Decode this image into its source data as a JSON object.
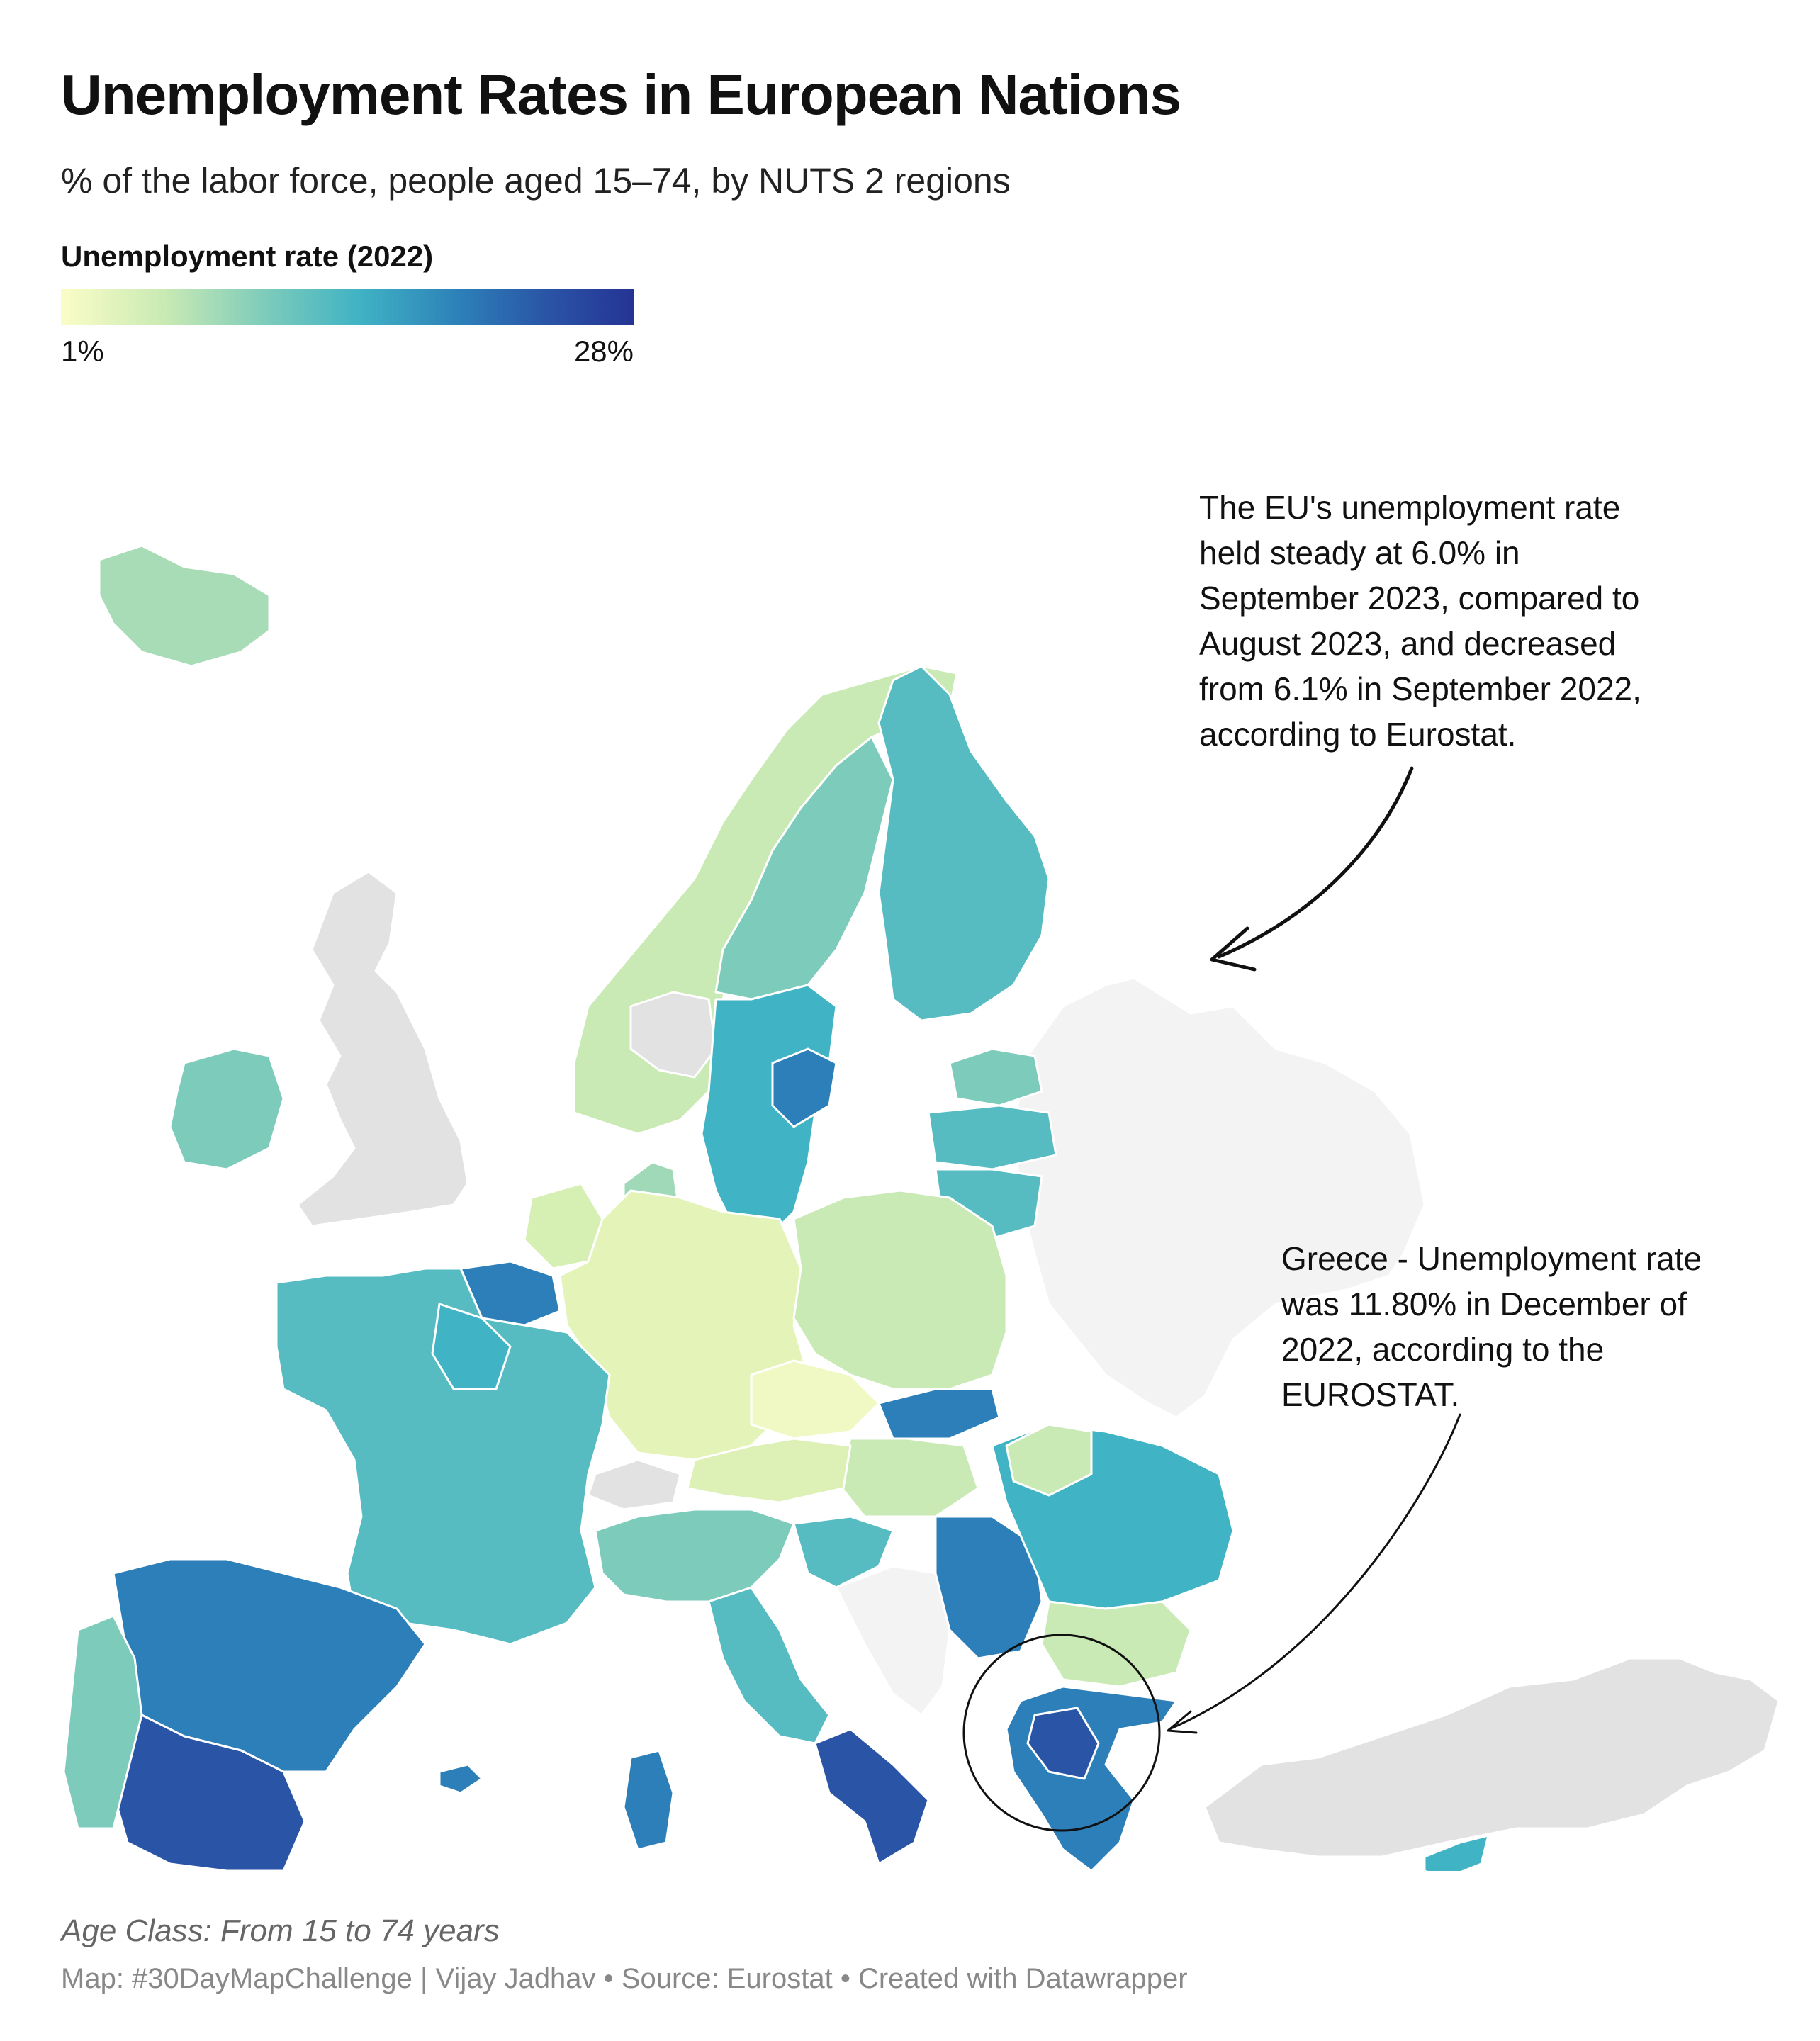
{
  "header": {
    "title": "Unemployment Rates in European Nations",
    "subtitle": "% of the labor force, people aged 15–74, by NUTS 2 regions"
  },
  "legend": {
    "title": "Unemployment rate (2022)",
    "min_label": "1%",
    "max_label": "28%",
    "color_scale": [
      "#fbfdc7",
      "#c9eab4",
      "#7ccbbb",
      "#40b3c4",
      "#2c7fb8",
      "#2a54a6",
      "#253494"
    ],
    "no_data_color": "#e2e2e2"
  },
  "annotations": {
    "eu": {
      "lines": [
        "The EU's unemployment rate",
        "held steady at 6.0% in",
        "September 2023, compared to",
        "August 2023, and decreased",
        "from 6.1% in September 2022,",
        "according to Eurostat."
      ]
    },
    "greece": {
      "lines": [
        "Greece - Unemployment rate",
        "was 11.80% in December of",
        "2022, according to the",
        "EUROSTAT."
      ]
    }
  },
  "footer": {
    "note": "Age Class: From 15 to 74 years",
    "credit": "Map: #30DayMapChallenge | Vijay Jadhav • Source: Eurostat • Created with Datawrapper"
  }
}
